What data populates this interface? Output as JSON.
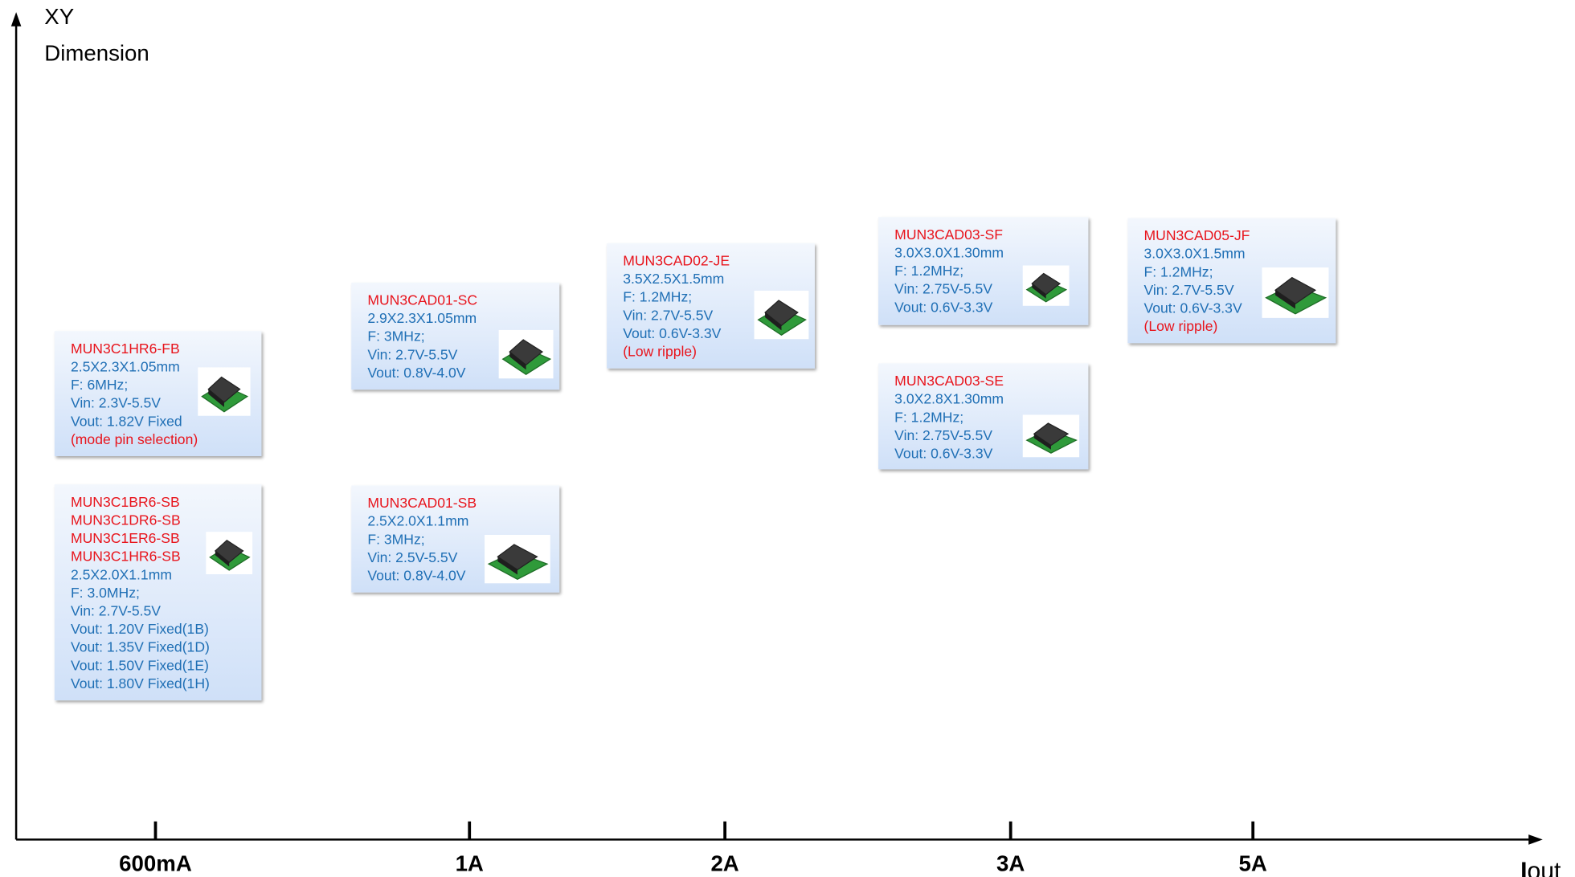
{
  "y_axis_label": [
    "XY",
    "Dimension"
  ],
  "x_axis_label": {
    "main": "I",
    "sub": "out"
  },
  "x_ticks": [
    "600mA",
    "1A",
    "2A",
    "3A",
    "5A"
  ],
  "cards": [
    {
      "lines": [
        {
          "text": "MUN3C1HR6-FB",
          "color": "#e8141c"
        },
        {
          "text": "2.5X2.3X1.05mm",
          "color": "#1f6fb5"
        },
        {
          "text": "F: 6MHz;",
          "color": "#1f6fb5"
        },
        {
          "text": "Vin: 2.3V-5.5V",
          "color": "#1f6fb5"
        },
        {
          "text": "Vout: 1.82V Fixed",
          "color": "#1f6fb5"
        },
        {
          "text": "(mode  pin selection)",
          "color": "#e8141c"
        }
      ]
    },
    {
      "lines": [
        {
          "text": "MUN3C1BR6-SB",
          "color": "#e8141c"
        },
        {
          "text": "MUN3C1DR6-SB",
          "color": "#e8141c"
        },
        {
          "text": "MUN3C1ER6-SB",
          "color": "#e8141c"
        },
        {
          "text": "MUN3C1HR6-SB",
          "color": "#e8141c"
        },
        {
          "text": "2.5X2.0X1.1mm",
          "color": "#1f6fb5"
        },
        {
          "text": "F: 3.0MHz;",
          "color": "#1f6fb5"
        },
        {
          "text": "Vin: 2.7V-5.5V",
          "color": "#1f6fb5"
        },
        {
          "text": "Vout: 1.20V Fixed(1B)",
          "color": "#1f6fb5"
        },
        {
          "text": "Vout: 1.35V Fixed(1D)",
          "color": "#1f6fb5"
        },
        {
          "text": "Vout: 1.50V Fixed(1E)",
          "color": "#1f6fb5"
        },
        {
          "text": "Vout: 1.80V Fixed(1H)",
          "color": "#1f6fb5"
        }
      ]
    },
    {
      "lines": [
        {
          "text": "MUN3CAD01-SC",
          "color": "#e8141c"
        },
        {
          "text": "2.9X2.3X1.05mm",
          "color": "#1f6fb5"
        },
        {
          "text": "F: 3MHz;",
          "color": "#1f6fb5"
        },
        {
          "text": "Vin: 2.7V-5.5V",
          "color": "#1f6fb5"
        },
        {
          "text": "Vout: 0.8V-4.0V",
          "color": "#1f6fb5"
        }
      ]
    },
    {
      "lines": [
        {
          "text": "MUN3CAD01-SB",
          "color": "#e8141c"
        },
        {
          "text": "2.5X2.0X1.1mm",
          "color": "#1f6fb5"
        },
        {
          "text": "F: 3MHz;",
          "color": "#1f6fb5"
        },
        {
          "text": "Vin: 2.5V-5.5V",
          "color": "#1f6fb5"
        },
        {
          "text": "Vout: 0.8V-4.0V",
          "color": "#1f6fb5"
        }
      ]
    },
    {
      "lines": [
        {
          "text": "MUN3CAD02-JE",
          "color": "#e8141c"
        },
        {
          "text": "3.5X2.5X1.5mm",
          "color": "#1f6fb5"
        },
        {
          "text": "F: 1.2MHz;",
          "color": "#1f6fb5"
        },
        {
          "text": "Vin: 2.7V-5.5V",
          "color": "#1f6fb5"
        },
        {
          "text": "Vout: 0.6V-3.3V",
          "color": "#1f6fb5"
        },
        {
          "text": "(Low ripple)",
          "color": "#e8141c"
        }
      ]
    },
    {
      "lines": [
        {
          "text": "MUN3CAD03-SF",
          "color": "#e8141c"
        },
        {
          "text": "3.0X3.0X1.30mm",
          "color": "#1f6fb5"
        },
        {
          "text": "F: 1.2MHz;",
          "color": "#1f6fb5"
        },
        {
          "text": "Vin: 2.75V-5.5V",
          "color": "#1f6fb5"
        },
        {
          "text": "Vout: 0.6V-3.3V",
          "color": "#1f6fb5"
        }
      ]
    },
    {
      "lines": [
        {
          "text": "MUN3CAD03-SE",
          "color": "#e8141c"
        },
        {
          "text": "3.0X2.8X1.30mm",
          "color": "#1f6fb5"
        },
        {
          "text": "F: 1.2MHz;",
          "color": "#1f6fb5"
        },
        {
          "text": "Vin: 2.75V-5.5V",
          "color": "#1f6fb5"
        },
        {
          "text": "Vout: 0.6V-3.3V",
          "color": "#1f6fb5"
        }
      ]
    },
    {
      "lines": [
        {
          "text": "MUN3CAD05-JF",
          "color": "#e8141c"
        },
        {
          "text": "3.0X3.0X1.5mm",
          "color": "#1f6fb5"
        },
        {
          "text": "F: 1.2MHz;",
          "color": "#1f6fb5"
        },
        {
          "text": "Vin: 2.7V-5.5V",
          "color": "#1f6fb5"
        },
        {
          "text": "Vout: 0.6V-3.3V",
          "color": "#1f6fb5"
        },
        {
          "text": "(Low ripple)",
          "color": "#e8141c"
        }
      ]
    }
  ]
}
